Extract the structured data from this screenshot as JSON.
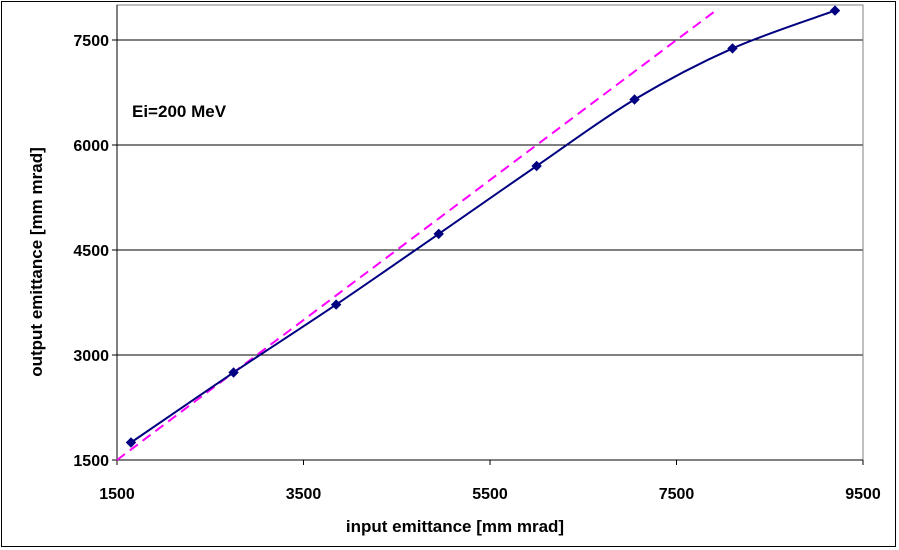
{
  "chart_data": {
    "type": "line",
    "xlabel": "input emittance [mm mrad]",
    "ylabel": "output emittance [mm mrad]",
    "xlim": [
      1500,
      9500
    ],
    "ylim": [
      1500,
      8000
    ],
    "x_ticks": [
      "1500",
      "3500",
      "5500",
      "7500",
      "9500"
    ],
    "y_ticks": [
      "1500",
      "3000",
      "4500",
      "6000",
      "7500"
    ],
    "grid": "horizontal",
    "annotation": "Ei=200 MeV",
    "series": [
      {
        "style": "solid line with diamond markers",
        "color": "#000080",
        "x": [
          1650,
          2750,
          3850,
          4950,
          6000,
          7050,
          8100,
          9200
        ],
        "y": [
          1750,
          2750,
          3720,
          4730,
          5700,
          6650,
          7380,
          7920
        ]
      },
      {
        "style": "dashed reference line",
        "color": "#ff00ff",
        "x": [
          1500,
          7950
        ],
        "y": [
          1500,
          7950
        ]
      }
    ]
  }
}
